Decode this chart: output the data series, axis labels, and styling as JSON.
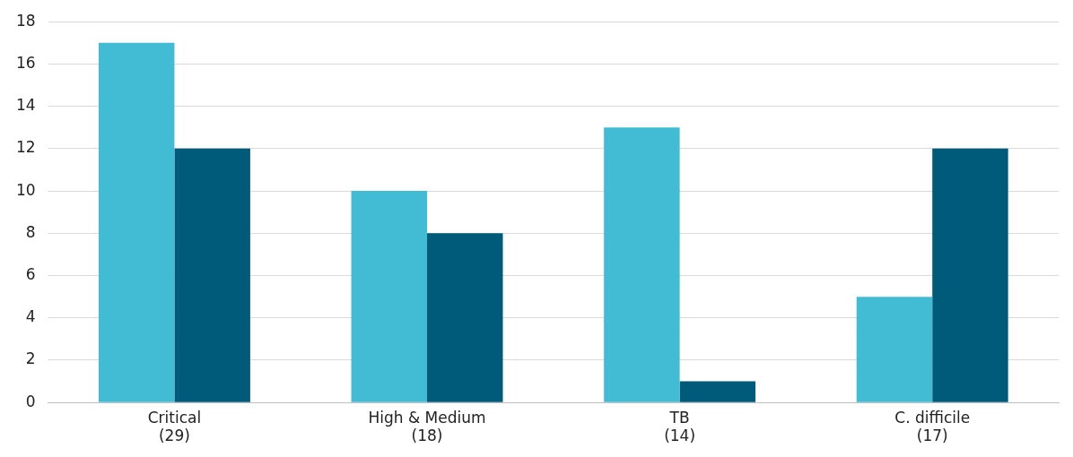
{
  "chart_data": {
    "type": "bar",
    "categories": [
      "Critical\n(29)",
      "High & Medium\n(18)",
      "TB\n(14)",
      "C. difficile\n(17)"
    ],
    "series": [
      {
        "color": "#42bcd4",
        "values": [
          17,
          10,
          13,
          5
        ]
      },
      {
        "color": "#005a7a",
        "values": [
          12,
          8,
          1,
          12
        ]
      }
    ],
    "ylim": [
      0,
      18
    ],
    "yticks": [
      0,
      2,
      4,
      6,
      8,
      10,
      12,
      14,
      16,
      18
    ],
    "grid": "y",
    "legend": false
  }
}
